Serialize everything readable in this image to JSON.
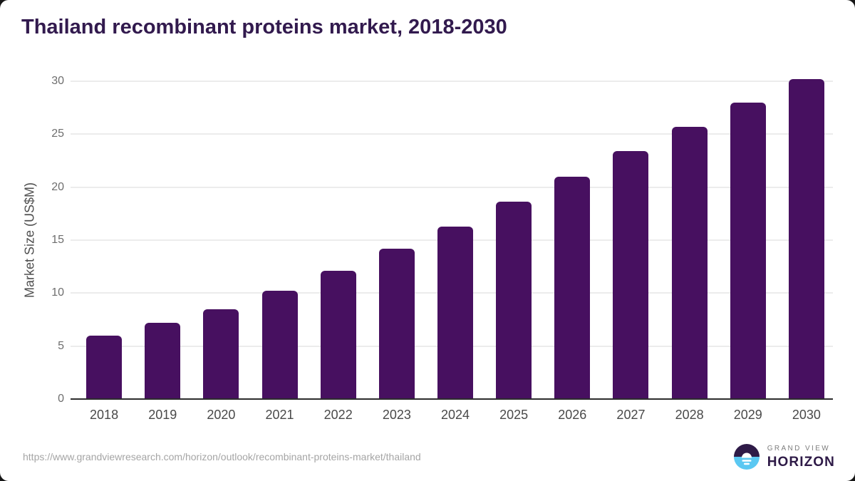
{
  "page": {
    "background": "#161616",
    "card_color": "#ffffff"
  },
  "chart_data": {
    "type": "bar",
    "title": "Thailand recombinant proteins market, 2018-2030",
    "xlabel": "",
    "ylabel": "Market Size (US$M)",
    "categories": [
      "2018",
      "2019",
      "2020",
      "2021",
      "2022",
      "2023",
      "2024",
      "2025",
      "2026",
      "2027",
      "2028",
      "2029",
      "2030"
    ],
    "values": [
      6.0,
      7.2,
      8.5,
      10.2,
      12.1,
      14.2,
      16.3,
      18.6,
      21.0,
      23.4,
      25.7,
      28.0,
      30.2
    ],
    "yticks": [
      0,
      5,
      10,
      15,
      20,
      25,
      30
    ],
    "ylim": [
      0,
      30
    ],
    "grid": "horizontal",
    "legend": "none",
    "bar_color": "#471060",
    "title_color": "#321a4e",
    "axis_text_color": "#6e6e6e"
  },
  "footer": {
    "source_url": "https://www.grandviewresearch.com/horizon/outlook/recombinant-proteins-market/thailand",
    "brand_top": "GRAND VIEW",
    "brand_bottom": "HORIZON",
    "logo_colors": {
      "dark": "#2e1a47",
      "light_blue": "#5bc8f2",
      "white": "#ffffff"
    }
  }
}
